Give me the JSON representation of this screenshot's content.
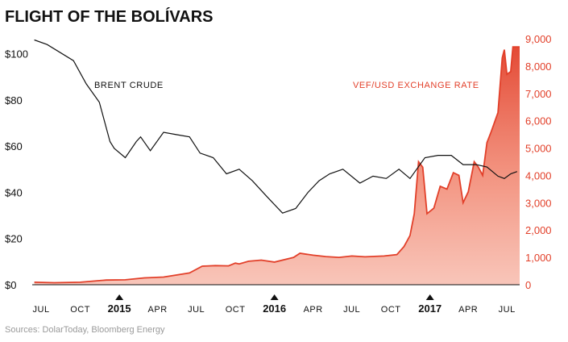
{
  "title": "FLIGHT OF THE BOLÍVARS",
  "source": "Sources: DolarToday, Bloomberg Energy",
  "colors": {
    "brent": "#111111",
    "vef": "#e2402a",
    "vef_fill": "#f08a72"
  },
  "chart_data": {
    "type": "line",
    "x_labels": [
      {
        "label": "JUL",
        "date": "2014-07",
        "year": false
      },
      {
        "label": "OCT",
        "date": "2014-10",
        "year": false
      },
      {
        "label": "2015",
        "date": "2015-01",
        "year": true
      },
      {
        "label": "APR",
        "date": "2015-04",
        "year": false
      },
      {
        "label": "JUL",
        "date": "2015-07",
        "year": false
      },
      {
        "label": "OCT",
        "date": "2015-10",
        "year": false
      },
      {
        "label": "2016",
        "date": "2016-01",
        "year": true
      },
      {
        "label": "APR",
        "date": "2016-04",
        "year": false
      },
      {
        "label": "JUL",
        "date": "2016-07",
        "year": false
      },
      {
        "label": "OCT",
        "date": "2016-10",
        "year": false
      },
      {
        "label": "2017",
        "date": "2017-01",
        "year": true
      },
      {
        "label": "APR",
        "date": "2017-04",
        "year": false
      },
      {
        "label": "JUL",
        "date": "2017-07",
        "year": false
      }
    ],
    "y_left": {
      "ylim": [
        0,
        110
      ],
      "ticks": [
        "$0",
        "$20",
        "$40",
        "$60",
        "$80",
        "$100"
      ],
      "tick_values": [
        0,
        20,
        40,
        60,
        80,
        100
      ]
    },
    "y_right": {
      "ylim": [
        0,
        9000
      ],
      "ticks": [
        "0",
        "1,000",
        "2,000",
        "3,000",
        "4,000",
        "5,000",
        "6,000",
        "7,000",
        "8,000",
        "9,000"
      ],
      "tick_values": [
        0,
        1000,
        2000,
        3000,
        4000,
        5000,
        6000,
        7000,
        8000,
        9000
      ]
    },
    "series": [
      {
        "name": "BRENT CRUDE",
        "axis": "left",
        "points": [
          [
            "2014-06-15",
            106
          ],
          [
            "2014-07-15",
            104
          ],
          [
            "2014-09-15",
            97
          ],
          [
            "2014-10-15",
            87
          ],
          [
            "2014-11-15",
            79
          ],
          [
            "2014-12-10",
            62
          ],
          [
            "2014-12-20",
            59
          ],
          [
            "2015-01-15",
            55
          ],
          [
            "2015-02-10",
            62
          ],
          [
            "2015-02-20",
            64
          ],
          [
            "2015-03-15",
            58
          ],
          [
            "2015-04-15",
            66
          ],
          [
            "2015-05-15",
            65
          ],
          [
            "2015-06-15",
            64
          ],
          [
            "2015-07-10",
            57
          ],
          [
            "2015-08-10",
            55
          ],
          [
            "2015-09-10",
            48
          ],
          [
            "2015-10-10",
            50
          ],
          [
            "2015-11-10",
            45
          ],
          [
            "2015-12-15",
            38
          ],
          [
            "2016-01-20",
            31
          ],
          [
            "2016-02-20",
            33
          ],
          [
            "2016-03-20",
            40
          ],
          [
            "2016-04-15",
            45
          ],
          [
            "2016-05-10",
            48
          ],
          [
            "2016-06-10",
            50
          ],
          [
            "2016-07-20",
            44
          ],
          [
            "2016-08-20",
            47
          ],
          [
            "2016-09-20",
            46
          ],
          [
            "2016-10-20",
            50
          ],
          [
            "2016-11-15",
            46
          ],
          [
            "2016-12-20",
            55
          ],
          [
            "2017-01-20",
            56
          ],
          [
            "2017-02-20",
            56
          ],
          [
            "2017-03-20",
            52
          ],
          [
            "2017-04-20",
            52
          ],
          [
            "2017-05-15",
            51
          ],
          [
            "2017-06-10",
            47
          ],
          [
            "2017-06-25",
            46
          ],
          [
            "2017-07-10",
            48
          ],
          [
            "2017-07-25",
            49
          ]
        ]
      },
      {
        "name": "VEF/USD EXCHANGE RATE",
        "axis": "right",
        "points": [
          [
            "2014-06-15",
            90
          ],
          [
            "2014-08-01",
            75
          ],
          [
            "2014-10-01",
            90
          ],
          [
            "2014-12-01",
            170
          ],
          [
            "2015-01-15",
            180
          ],
          [
            "2015-03-01",
            250
          ],
          [
            "2015-04-15",
            280
          ],
          [
            "2015-06-15",
            430
          ],
          [
            "2015-07-15",
            680
          ],
          [
            "2015-08-15",
            700
          ],
          [
            "2015-09-15",
            690
          ],
          [
            "2015-10-01",
            790
          ],
          [
            "2015-10-10",
            760
          ],
          [
            "2015-11-01",
            860
          ],
          [
            "2015-12-01",
            900
          ],
          [
            "2016-01-01",
            830
          ],
          [
            "2016-02-15",
            1000
          ],
          [
            "2016-03-01",
            1150
          ],
          [
            "2016-04-01",
            1080
          ],
          [
            "2016-05-01",
            1030
          ],
          [
            "2016-06-01",
            1000
          ],
          [
            "2016-07-01",
            1050
          ],
          [
            "2016-08-01",
            1020
          ],
          [
            "2016-09-15",
            1050
          ],
          [
            "2016-10-15",
            1100
          ],
          [
            "2016-11-01",
            1400
          ],
          [
            "2016-11-15",
            1800
          ],
          [
            "2016-11-25",
            2600
          ],
          [
            "2016-12-05",
            4500
          ],
          [
            "2016-12-15",
            4300
          ],
          [
            "2016-12-25",
            2600
          ],
          [
            "2017-01-10",
            2800
          ],
          [
            "2017-01-25",
            3600
          ],
          [
            "2017-02-10",
            3500
          ],
          [
            "2017-02-25",
            4100
          ],
          [
            "2017-03-10",
            4000
          ],
          [
            "2017-03-20",
            3000
          ],
          [
            "2017-04-01",
            3400
          ],
          [
            "2017-04-15",
            4500
          ],
          [
            "2017-04-25",
            4300
          ],
          [
            "2017-05-05",
            4000
          ],
          [
            "2017-05-15",
            5200
          ],
          [
            "2017-05-25",
            5600
          ],
          [
            "2017-06-10",
            6300
          ],
          [
            "2017-06-20",
            8300
          ],
          [
            "2017-06-25",
            8600
          ],
          [
            "2017-07-01",
            7700
          ],
          [
            "2017-07-10",
            7800
          ],
          [
            "2017-07-15",
            8700
          ],
          [
            "2017-07-31",
            8700
          ]
        ]
      }
    ]
  }
}
